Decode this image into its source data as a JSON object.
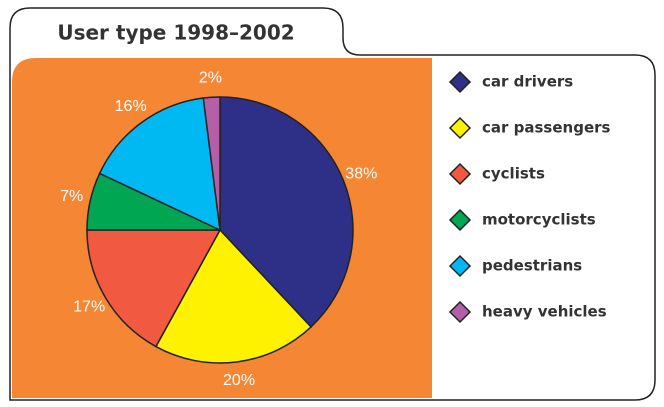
{
  "chart_data": {
    "type": "pie",
    "title": "User type 1998–2002",
    "categories": [
      "car drivers",
      "car passengers",
      "cyclists",
      "motorcyclists",
      "pedestrians",
      "heavy vehicles"
    ],
    "values": [
      38,
      20,
      17,
      7,
      16,
      2
    ],
    "value_labels": [
      "38%",
      "20%",
      "17%",
      "7%",
      "16%",
      "2%"
    ],
    "colors": [
      "#2e3087",
      "#fff200",
      "#f15a40",
      "#00a651",
      "#00b9f2",
      "#b460a8"
    ]
  }
}
